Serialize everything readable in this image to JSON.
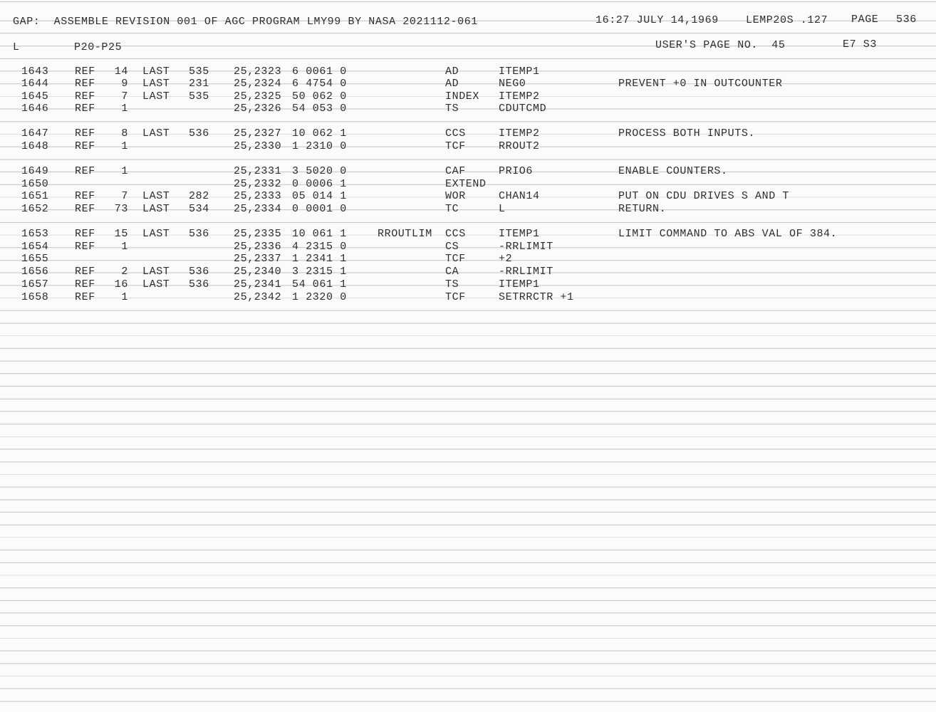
{
  "header": {
    "title": "GAP:  ASSEMBLE REVISION 001 OF AGC PROGRAM LMY99 BY NASA 2021112-061",
    "timestamp": "16:27 JULY 14,1969",
    "program_id": "LEMP20S .127",
    "page_label": "PAGE",
    "page": "536"
  },
  "subheader": {
    "l": "L",
    "section": "P20-P25",
    "users_page": "USER'S PAGE NO.  45",
    "code": "E7 S3"
  },
  "rows": [
    {
      "line": "1643",
      "ref": "REF",
      "ref_count": "14",
      "last": "LAST",
      "last_page": "535",
      "address": "25,2323",
      "word": "6 0061 0",
      "op": "AD",
      "operand": "ITEMP1"
    },
    {
      "line": "1644",
      "ref": "REF",
      "ref_count": "9",
      "last": "LAST",
      "last_page": "231",
      "address": "25,2324",
      "word": "6 4754 0",
      "op": "AD",
      "operand": "NEG0",
      "comment": "PREVENT +0 IN OUTCOUNTER"
    },
    {
      "line": "1645",
      "ref": "REF",
      "ref_count": "7",
      "last": "LAST",
      "last_page": "535",
      "address": "25,2325",
      "word": "50 062 0",
      "op": "INDEX",
      "operand": "ITEMP2"
    },
    {
      "line": "1646",
      "ref": "REF",
      "ref_count": "1",
      "address": "25,2326",
      "word": "54 053 0",
      "op": "TS",
      "operand": "CDUTCMD"
    },
    {
      "line": "1647",
      "ref": "REF",
      "ref_count": "8",
      "last": "LAST",
      "last_page": "536",
      "address": "25,2327",
      "word": "10 062 1",
      "op": "CCS",
      "operand": "ITEMP2",
      "comment": "PROCESS BOTH INPUTS."
    },
    {
      "line": "1648",
      "ref": "REF",
      "ref_count": "1",
      "address": "25,2330",
      "word": "1 2310 0",
      "op": "TCF",
      "operand": "RROUT2"
    },
    {
      "line": "1649",
      "ref": "REF",
      "ref_count": "1",
      "address": "25,2331",
      "word": "3 5020 0",
      "op": "CAF",
      "operand": "PRIO6",
      "comment": "ENABLE COUNTERS."
    },
    {
      "line": "1650",
      "address": "25,2332",
      "word": "0 0006 1",
      "op": "EXTEND"
    },
    {
      "line": "1651",
      "ref": "REF",
      "ref_count": "7",
      "last": "LAST",
      "last_page": "282",
      "address": "25,2333",
      "word": "05 014 1",
      "op": "WOR",
      "operand": "CHAN14",
      "comment": "PUT ON CDU DRIVES S AND T"
    },
    {
      "line": "1652",
      "ref": "REF",
      "ref_count": "73",
      "last": "LAST",
      "last_page": "534",
      "address": "25,2334",
      "word": "0 0001 0",
      "op": "TC",
      "operand": "L",
      "comment": "RETURN."
    },
    {
      "line": "1653",
      "ref": "REF",
      "ref_count": "15",
      "last": "LAST",
      "last_page": "536",
      "address": "25,2335",
      "word": "10 061 1",
      "label": "RROUTLIM",
      "op": "CCS",
      "operand": "ITEMP1",
      "comment": "LIMIT COMMAND TO ABS VAL OF 384."
    },
    {
      "line": "1654",
      "ref": "REF",
      "ref_count": "1",
      "address": "25,2336",
      "word": "4 2315 0",
      "op": "CS",
      "operand": "-RRLIMIT"
    },
    {
      "line": "1655",
      "address": "25,2337",
      "word": "1 2341 1",
      "op": "TCF",
      "operand": "+2"
    },
    {
      "line": "1656",
      "ref": "REF",
      "ref_count": "2",
      "last": "LAST",
      "last_page": "536",
      "address": "25,2340",
      "word": "3 2315 1",
      "op": "CA",
      "operand": "-RRLIMIT"
    },
    {
      "line": "1657",
      "ref": "REF",
      "ref_count": "16",
      "last": "LAST",
      "last_page": "536",
      "address": "25,2341",
      "word": "54 061 1",
      "op": "TS",
      "operand": "ITEMP1"
    },
    {
      "line": "1658",
      "ref": "REF",
      "ref_count": "1",
      "address": "25,2342",
      "word": "1 2320 0",
      "op": "TCF",
      "operand": "SETRRCTR +1"
    }
  ]
}
